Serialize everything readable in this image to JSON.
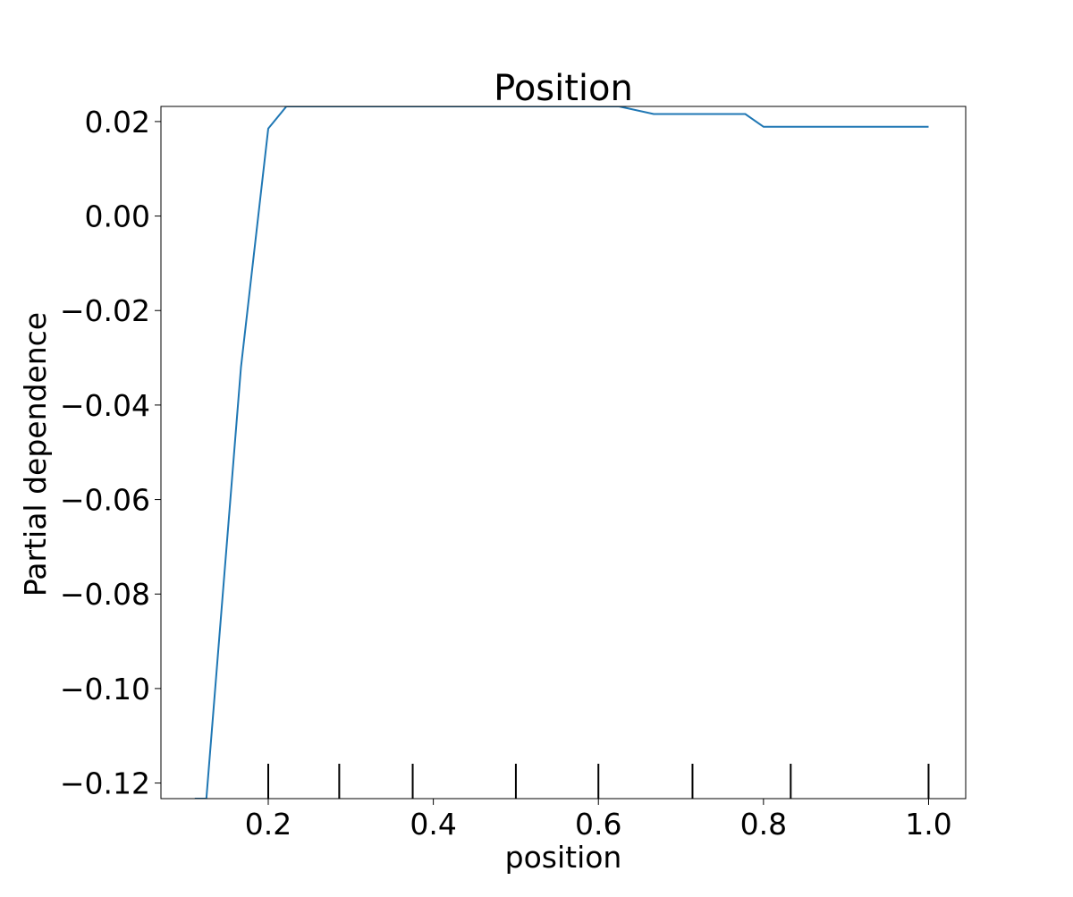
{
  "chart_data": {
    "type": "line",
    "title": "Position",
    "xlabel": "position",
    "ylabel": "Partial dependence",
    "xlim": [
      0.07,
      1.045
    ],
    "ylim": [
      -0.1233,
      0.0232
    ],
    "xticks": [
      0.2,
      0.4,
      0.6,
      0.8,
      1.0
    ],
    "xtick_labels": [
      "0.2",
      "0.4",
      "0.6",
      "0.8",
      "1.0"
    ],
    "yticks": [
      0.02,
      0.0,
      -0.02,
      -0.04,
      -0.06,
      -0.08,
      -0.1,
      -0.12
    ],
    "ytick_labels": [
      "0.02",
      "0.00",
      "−0.02",
      "−0.04",
      "−0.06",
      "−0.08",
      "−0.10",
      "−0.12"
    ],
    "grid": false,
    "line_color": "#1f77b4",
    "series": [
      {
        "x": [
          0.111,
          0.125,
          0.167,
          0.2,
          0.222,
          0.25,
          0.286,
          0.333,
          0.375,
          0.4,
          0.429,
          0.444,
          0.5,
          0.556,
          0.571,
          0.6,
          0.625,
          0.667,
          0.714,
          0.75,
          0.778,
          0.8,
          0.833,
          0.857,
          0.875,
          0.889,
          0.9,
          1.0
        ],
        "y": [
          -0.1233,
          -0.1233,
          -0.032,
          0.0185,
          0.0232,
          0.0232,
          0.0232,
          0.0232,
          0.0232,
          0.0232,
          0.0232,
          0.0232,
          0.0232,
          0.0232,
          0.0232,
          0.0232,
          0.0232,
          0.0216,
          0.0216,
          0.0216,
          0.0216,
          0.0189,
          0.0189,
          0.0189,
          0.0189,
          0.0189,
          0.0189,
          0.0189
        ]
      }
    ],
    "deciles": [
      0.2,
      0.286,
      0.375,
      0.5,
      0.6,
      0.714,
      0.833,
      1.0
    ]
  }
}
